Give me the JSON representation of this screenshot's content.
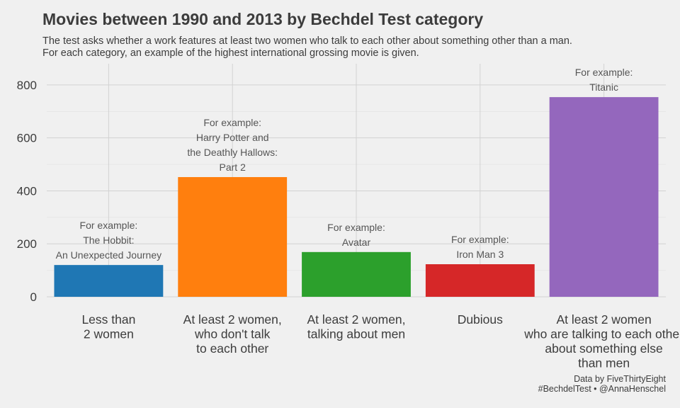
{
  "chart_data": {
    "type": "bar",
    "title": "Movies between 1990 and 2013 by Bechdel Test category",
    "subtitle": [
      "The test asks whether a work features at least two women who talk to each other about something other than a man.",
      "For each category, an example of the highest international grossing movie is given."
    ],
    "caption": [
      "Data by FiveThirtyEight",
      "#BechdelTest • @AnnaHenschel"
    ],
    "xlabel": "",
    "ylabel": "",
    "ylim": [
      0,
      880
    ],
    "yticks": [
      0,
      200,
      400,
      600,
      800
    ],
    "grid": true,
    "legend": "none",
    "categories": [
      [
        "Less than",
        "2 women"
      ],
      [
        "At least 2 women,",
        "who don't talk",
        "to each other"
      ],
      [
        "At least 2 women,",
        "talking about men"
      ],
      [
        "Dubious"
      ],
      [
        "At least 2 women",
        "who are talking to each other",
        "about something else",
        "than men"
      ]
    ],
    "values": [
      120,
      452,
      169,
      123,
      754
    ],
    "colors": [
      "#1f77b4",
      "#ff7f0e",
      "#2ca02c",
      "#d62728",
      "#9467bd"
    ],
    "annotations": [
      [
        "For example:",
        "The Hobbit:",
        "An Unexpected Journey"
      ],
      [
        "For example:",
        "Harry Potter and",
        "the Deathly Hallows:",
        "Part 2"
      ],
      [
        "For example:",
        "Avatar"
      ],
      [
        "For example:",
        "Iron Man 3"
      ],
      [
        "For example:",
        "Titanic"
      ]
    ]
  }
}
